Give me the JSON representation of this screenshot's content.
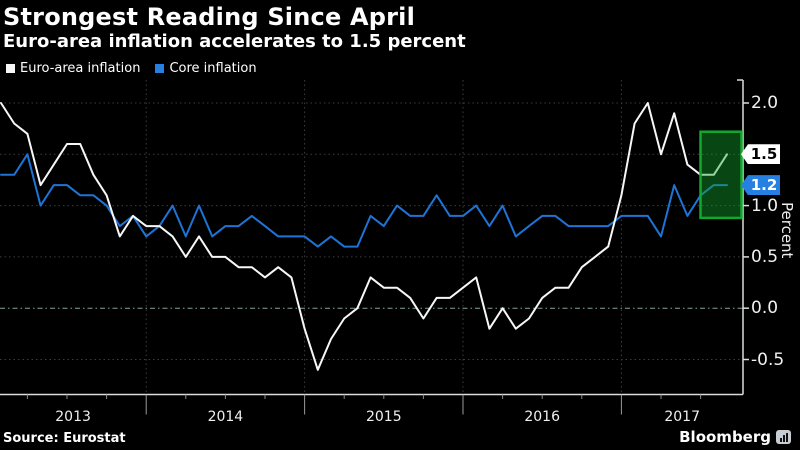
{
  "header": {
    "title": "Strongest Reading Since April",
    "subtitle": "Euro-area inflation accelerates to 1.5 percent"
  },
  "legend": {
    "items": [
      {
        "label": "Euro-area inflation",
        "color": "#f7f7f7"
      },
      {
        "label": "Core inflation",
        "color": "#2580e2"
      }
    ]
  },
  "chart_data": {
    "type": "line",
    "title": "Strongest Reading Since April",
    "subtitle": "Euro-area inflation accelerates to 1.5 percent",
    "frequency": "monthly",
    "x_start": "2013-01",
    "x_end": "2017-08",
    "x_year_labels": [
      "2013",
      "2014",
      "2015",
      "2016",
      "2017"
    ],
    "ylabel": "Percent",
    "y_ticks": [
      2.0,
      1.5,
      1.0,
      0.5,
      0.0,
      -0.5
    ],
    "ylim": [
      -0.85,
      2.22
    ],
    "grid": true,
    "legend_position": "top-left",
    "series": [
      {
        "name": "Euro-area inflation",
        "color": "#f7f7f7",
        "values": [
          2.0,
          1.8,
          1.7,
          1.2,
          1.4,
          1.6,
          1.6,
          1.3,
          1.1,
          0.7,
          0.9,
          0.8,
          0.8,
          0.7,
          0.5,
          0.7,
          0.5,
          0.5,
          0.4,
          0.4,
          0.3,
          0.4,
          0.3,
          -0.2,
          -0.6,
          -0.3,
          -0.1,
          0.0,
          0.3,
          0.2,
          0.2,
          0.1,
          -0.1,
          0.1,
          0.1,
          0.2,
          0.3,
          -0.2,
          0.0,
          -0.2,
          -0.1,
          0.1,
          0.2,
          0.2,
          0.4,
          0.5,
          0.6,
          1.1,
          1.8,
          2.0,
          1.5,
          1.9,
          1.4,
          1.3,
          1.3,
          1.5
        ]
      },
      {
        "name": "Core inflation",
        "color": "#1e74d6",
        "values": [
          1.3,
          1.3,
          1.5,
          1.0,
          1.2,
          1.2,
          1.1,
          1.1,
          1.0,
          0.8,
          0.9,
          0.7,
          0.8,
          1.0,
          0.7,
          1.0,
          0.7,
          0.8,
          0.8,
          0.9,
          0.8,
          0.7,
          0.7,
          0.7,
          0.6,
          0.7,
          0.6,
          0.6,
          0.9,
          0.8,
          1.0,
          0.9,
          0.9,
          1.1,
          0.9,
          0.9,
          1.0,
          0.8,
          1.0,
          0.7,
          0.8,
          0.9,
          0.9,
          0.8,
          0.8,
          0.8,
          0.8,
          0.9,
          0.9,
          0.9,
          0.7,
          1.2,
          0.9,
          1.1,
          1.2,
          1.2
        ]
      }
    ],
    "end_labels": [
      {
        "text": "1.5",
        "series": "Euro-area inflation",
        "value": 1.5,
        "bg": "#ffffff",
        "fg": "#000000"
      },
      {
        "text": "1.2",
        "series": "Core inflation",
        "value": 1.2,
        "bg": "#2580e2",
        "fg": "#ffffff"
      }
    ],
    "highlight": {
      "type": "box",
      "x_from": "2017-06",
      "x_to": "2017-08",
      "y_from": 0.88,
      "y_to": 1.72,
      "border_color": "#12a82e",
      "fill_color": "#14a62e",
      "fill_opacity": 0.42
    }
  },
  "footer": {
    "source": "Source: Eurostat",
    "brand": "Bloomberg"
  },
  "colors": {
    "background": "#000000",
    "grid": "#3c3c3c",
    "zero_line": "#84a29b",
    "axis": "#dcdcdc",
    "year_tick": "#9a9a9a",
    "minor_tick": "#8a8a8a",
    "text": "#f2f2f2"
  }
}
